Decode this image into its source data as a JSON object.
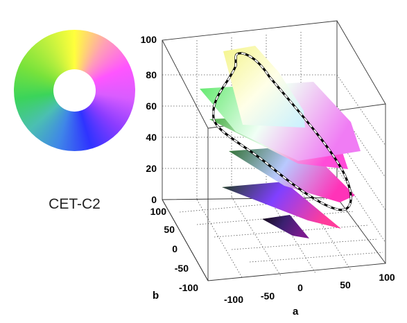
{
  "colormap": {
    "name": "CET-C2",
    "wheel_hues": [
      "#ffff3c",
      "#ff9fb6",
      "#ff55ff",
      "#d95cff",
      "#8a3cff",
      "#2f33ff",
      "#3f86e8",
      "#4bbfb2",
      "#3bd45a",
      "#78e23b",
      "#b9ef3e",
      "#ffff3c"
    ]
  },
  "chart_data": {
    "type": "3d-surface",
    "title": "",
    "xlabel": "a",
    "ylabel": "b",
    "zlabel": "",
    "xlim": [
      -100,
      100
    ],
    "ylim": [
      -100,
      100
    ],
    "zlim": [
      0,
      100
    ],
    "x_ticks": [
      "-100",
      "-50",
      "0",
      "50",
      "100"
    ],
    "y_ticks": [
      "-100",
      "-50",
      "0",
      "50",
      "100"
    ],
    "z_ticks": [
      "0",
      "20",
      "40",
      "60",
      "80",
      "100"
    ],
    "grid": true,
    "slices": [
      {
        "L": 90,
        "colors": [
          "#f4f48c",
          "#ffffe8",
          "#c8f0ff"
        ]
      },
      {
        "L": 75,
        "colors": [
          "#5fe86a",
          "#f0fff5",
          "#f07cf4"
        ]
      },
      {
        "L": 60,
        "colors": [
          "#3fa83c",
          "#e5ffe9",
          "#ff4bd8"
        ]
      },
      {
        "L": 45,
        "colors": [
          "#2d6e2d",
          "#b9c9ff",
          "#ff33b8"
        ]
      },
      {
        "L": 30,
        "colors": [
          "#1e3f1c",
          "#8040ff",
          "#ff3c9c"
        ]
      },
      {
        "L": 15,
        "colors": [
          "#120812",
          "#3b2070",
          "#7a1a8e"
        ]
      }
    ],
    "colormap_path": {
      "style": "dashed",
      "colors": [
        "#000000",
        "#ffffff"
      ]
    }
  }
}
